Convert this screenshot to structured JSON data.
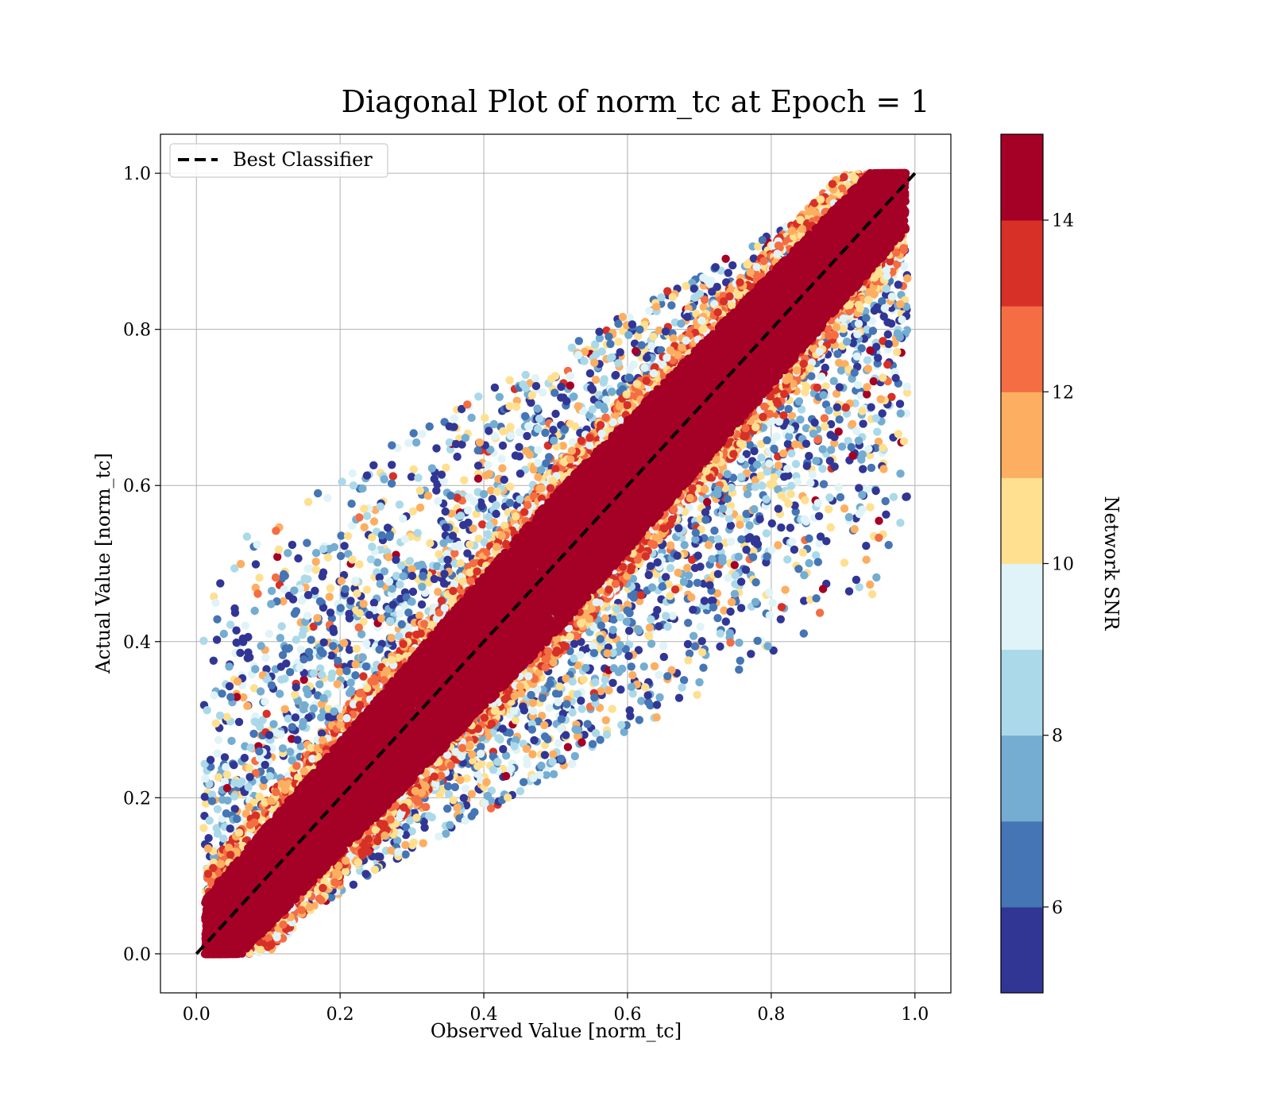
{
  "chart_data": {
    "type": "scatter",
    "title": "Diagonal Plot of norm_tc at Epoch = 1",
    "xlabel": "Observed Value [norm_tc]",
    "ylabel": "Actual Value [norm_tc]",
    "xlim": [
      -0.05,
      1.05
    ],
    "ylim": [
      -0.05,
      1.05
    ],
    "xticks": [
      "0.0",
      "0.2",
      "0.4",
      "0.6",
      "0.8",
      "1.0"
    ],
    "yticks": [
      "0.0",
      "0.2",
      "0.4",
      "0.6",
      "0.8",
      "1.0"
    ],
    "grid": true,
    "legend": {
      "position": "upper-left",
      "entries": [
        "Best Classifier"
      ]
    },
    "reference_line": {
      "name": "Best Classifier",
      "style": "dashed",
      "color": "#000000",
      "x": [
        0.0,
        1.0
      ],
      "y": [
        0.0,
        1.0
      ]
    },
    "points_description": "Dense scatter of many thousands of points; high-SNR points (dark red) form a wide band along the diagonal, low-SNR points (blue) are scattered across the upper-left and lower-right regions.",
    "band_center_halfwidth_at": [
      {
        "x": 0.0,
        "halfwidth": 0.06
      },
      {
        "x": 0.5,
        "halfwidth": 0.09
      },
      {
        "x": 1.0,
        "halfwidth": 0.06
      }
    ],
    "colorbar": {
      "label": "Network SNR",
      "range": [
        5,
        15
      ],
      "ticks": [
        "6",
        "8",
        "10",
        "12",
        "14"
      ],
      "tick_values": [
        6,
        8,
        10,
        12,
        14
      ],
      "colormap": "RdYlBu_r",
      "levels": [
        {
          "from": 5,
          "to": 6,
          "color": "#313695"
        },
        {
          "from": 6,
          "to": 7,
          "color": "#4575b4"
        },
        {
          "from": 7,
          "to": 8,
          "color": "#74add1"
        },
        {
          "from": 8,
          "to": 9,
          "color": "#abd9e9"
        },
        {
          "from": 9,
          "to": 10,
          "color": "#e0f3f8"
        },
        {
          "from": 10,
          "to": 11,
          "color": "#fee090"
        },
        {
          "from": 11,
          "to": 12,
          "color": "#fdae61"
        },
        {
          "from": 12,
          "to": 13,
          "color": "#f46d43"
        },
        {
          "from": 13,
          "to": 14,
          "color": "#d73027"
        },
        {
          "from": 14,
          "to": 15,
          "color": "#a50026"
        }
      ]
    }
  }
}
